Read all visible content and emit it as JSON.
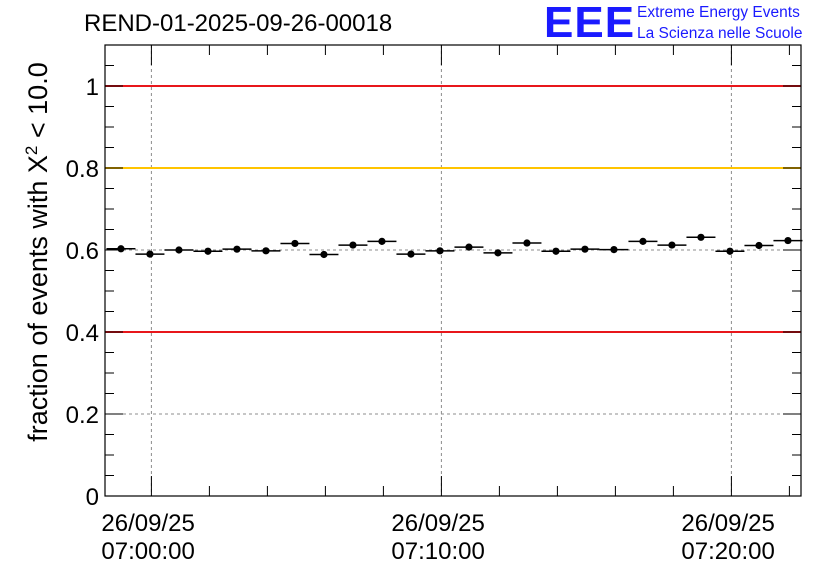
{
  "logo": {
    "mark": "EEE",
    "line1": "Extreme Energy Events",
    "line2": "La Scienza nelle Scuole",
    "color": "#1a1aff"
  },
  "chart_data": {
    "type": "scatter",
    "title": "REND-01-2025-09-26-00018",
    "ylabel": {
      "prefix": "fraction of events with ",
      "symbol": "X",
      "exponent": "2",
      "suffix": " < 10.0"
    },
    "xlabel": "",
    "ylim": [
      0,
      1.1
    ],
    "yticks": [
      {
        "value": 0,
        "label": "0"
      },
      {
        "value": 0.2,
        "label": "0.2"
      },
      {
        "value": 0.4,
        "label": "0.4"
      },
      {
        "value": 0.6,
        "label": "0.6"
      },
      {
        "value": 0.8,
        "label": "0.8"
      },
      {
        "value": 1.0,
        "label": "1"
      }
    ],
    "xlim_minutes": [
      -1.6,
      22.4
    ],
    "xticks": [
      {
        "minute": 0,
        "date": "26/09/25",
        "time": "07:00:00"
      },
      {
        "minute": 10,
        "date": "26/09/25",
        "time": "07:10:00"
      },
      {
        "minute": 20,
        "date": "26/09/25",
        "time": "07:20:00"
      }
    ],
    "reference_lines": [
      {
        "value": 1.0,
        "color": "#e8161b"
      },
      {
        "value": 0.8,
        "color": "#ffc400"
      },
      {
        "value": 0.4,
        "color": "#e8161b"
      }
    ],
    "grid": true,
    "bin_width_minutes": 1,
    "series": [
      {
        "name": "fraction",
        "color": "#000000",
        "x_minutes": [
          -1.05,
          -0.05,
          0.95,
          1.95,
          2.95,
          3.95,
          4.95,
          5.95,
          6.95,
          7.95,
          8.95,
          9.95,
          10.95,
          11.95,
          12.95,
          13.95,
          14.95,
          15.95,
          16.95,
          17.95,
          18.95,
          19.95,
          20.95,
          21.95
        ],
        "values": [
          0.603,
          0.59,
          0.6,
          0.597,
          0.602,
          0.598,
          0.616,
          0.589,
          0.612,
          0.621,
          0.59,
          0.598,
          0.607,
          0.593,
          0.617,
          0.597,
          0.602,
          0.601,
          0.621,
          0.612,
          0.631,
          0.597,
          0.611,
          0.623
        ],
        "errors": [
          0.006,
          0.006,
          0.006,
          0.006,
          0.006,
          0.006,
          0.006,
          0.006,
          0.006,
          0.006,
          0.006,
          0.006,
          0.006,
          0.006,
          0.006,
          0.006,
          0.006,
          0.006,
          0.006,
          0.006,
          0.006,
          0.006,
          0.006,
          0.006
        ]
      }
    ]
  }
}
